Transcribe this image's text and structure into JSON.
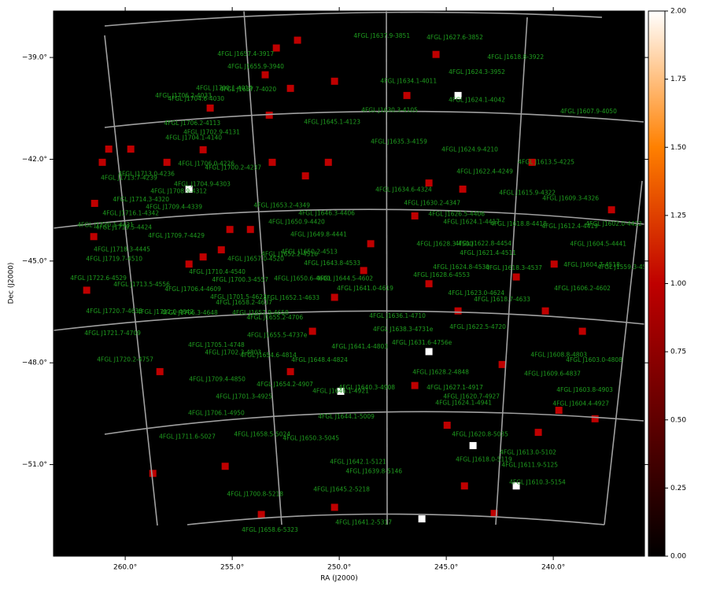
{
  "chart_data": {
    "type": "image",
    "xlabel": "RA (J2000)",
    "ylabel": "Dec (J2000)",
    "xlim": [
      263.35,
      235.74
    ],
    "ylim": [
      -53.7,
      -37.63
    ],
    "xticks": [
      {
        "value": 260,
        "label": "260.0°"
      },
      {
        "value": 255,
        "label": "255.0°"
      },
      {
        "value": 250,
        "label": "250.0°"
      },
      {
        "value": 245,
        "label": "245.0°"
      },
      {
        "value": 240,
        "label": "240.0°"
      }
    ],
    "yticks": [
      {
        "value": -39,
        "label": "−39.0°"
      },
      {
        "value": -42,
        "label": "−42.0°"
      },
      {
        "value": -45,
        "label": "−45.0°"
      },
      {
        "value": -48,
        "label": "−48.0°"
      },
      {
        "value": -51,
        "label": "−51.0°"
      }
    ],
    "background": "#000000",
    "label_color": "#1f9e1f",
    "colorbar": {
      "lim": [
        0,
        2
      ],
      "ticks": [
        {
          "value": 0,
          "label": "0.00"
        },
        {
          "value": 0.25,
          "label": "0.25"
        },
        {
          "value": 0.5,
          "label": "0.50"
        },
        {
          "value": 0.75,
          "label": "0.75"
        },
        {
          "value": 1,
          "label": "1.00"
        },
        {
          "value": 1.25,
          "label": "1.25"
        },
        {
          "value": 1.5,
          "label": "1.50"
        },
        {
          "value": 1.75,
          "label": "1.75"
        },
        {
          "value": 2,
          "label": "2.00"
        }
      ],
      "colormap": [
        "#000000",
        "#600000",
        "#bf0000",
        "#ff8000",
        "#ffffff"
      ]
    },
    "sources": [
      {
        "name": "4FGL J1637.9-3851",
        "ra": 248.01,
        "dec": -38.37
      },
      {
        "name": "4FGL J1627.6-3852",
        "ra": 244.6,
        "dec": -38.42
      },
      {
        "name": "4FGL J1657.4-3917",
        "ra": 254.37,
        "dec": -38.91
      },
      {
        "name": "4FGL J1618.8-3922",
        "ra": 241.76,
        "dec": -39.0
      },
      {
        "name": "4FGL J1655.9-3940",
        "ra": 253.9,
        "dec": -39.28
      },
      {
        "name": "4FGL J1624.3-3952",
        "ra": 243.57,
        "dec": -39.44
      },
      {
        "name": "4FGL J1634.1-4011",
        "ra": 246.76,
        "dec": -39.7
      },
      {
        "name": "4FGL J1700.1-4014",
        "ra": 255.37,
        "dec": -39.91
      },
      {
        "name": "4FGL J1657.7-4020",
        "ra": 254.26,
        "dec": -39.95
      },
      {
        "name": "4FGL J1706.2-4033",
        "ra": 257.28,
        "dec": -40.14
      },
      {
        "name": "4FGL J1704.6-4030",
        "ra": 256.69,
        "dec": -40.23
      },
      {
        "name": "4FGL J1624.1-4042",
        "ra": 243.57,
        "dec": -40.26
      },
      {
        "name": "4FGL J1630.3-4105",
        "ra": 247.65,
        "dec": -40.56
      },
      {
        "name": "4FGL J1607.9-4050",
        "ra": 238.35,
        "dec": -40.6
      },
      {
        "name": "4FGL J1645.1-4123",
        "ra": 250.33,
        "dec": -40.91
      },
      {
        "name": "4FGL J1706.2-4113",
        "ra": 256.87,
        "dec": -40.95
      },
      {
        "name": "4FGL J1702.9-4131",
        "ra": 255.96,
        "dec": -41.21
      },
      {
        "name": "4FGL J1704.1-4140",
        "ra": 256.8,
        "dec": -41.37
      },
      {
        "name": "4FGL J1635.3-4159",
        "ra": 247.21,
        "dec": -41.49
      },
      {
        "name": "4FGL J1624.9-4210",
        "ra": 243.9,
        "dec": -41.72
      },
      {
        "name": "4FGL J1613.5-4225",
        "ra": 240.33,
        "dec": -42.09
      },
      {
        "name": "4FGL J1706.0-4226",
        "ra": 256.21,
        "dec": -42.14
      },
      {
        "name": "4FGL J1700.2-4237",
        "ra": 254.96,
        "dec": -42.26
      },
      {
        "name": "4FGL J1622.4-4249",
        "ra": 243.2,
        "dec": -42.37
      },
      {
        "name": "4FGL J1713.0-4236",
        "ra": 259.01,
        "dec": -42.44
      },
      {
        "name": "4FGL J1713.7-4239",
        "ra": 259.82,
        "dec": -42.56
      },
      {
        "name": "4FGL J1704.9-4303",
        "ra": 256.4,
        "dec": -42.74
      },
      {
        "name": "4FGL J1708.9-4312",
        "ra": 257.5,
        "dec": -42.95
      },
      {
        "name": "4FGL J1634.6-4324",
        "ra": 246.99,
        "dec": -42.91
      },
      {
        "name": "4FGL J1615.9-4322",
        "ra": 241.21,
        "dec": -43.0
      },
      {
        "name": "4FGL J1609.3-4326",
        "ra": 239.19,
        "dec": -43.16
      },
      {
        "name": "4FGL J1714.3-4320",
        "ra": 259.26,
        "dec": -43.19
      },
      {
        "name": "4FGL J1630.2-4347",
        "ra": 245.66,
        "dec": -43.3
      },
      {
        "name": "4FGL J1653.2-4349",
        "ra": 252.68,
        "dec": -43.37
      },
      {
        "name": "4FGL J1709.4-4339",
        "ra": 257.72,
        "dec": -43.42
      },
      {
        "name": "4FGL J1716.1-4342",
        "ra": 259.74,
        "dec": -43.6
      },
      {
        "name": "4FGL J1646.3-4406",
        "ra": 250.59,
        "dec": -43.6
      },
      {
        "name": "4FGL J1626.5-4406",
        "ra": 244.52,
        "dec": -43.63
      },
      {
        "name": "4FGL J1624.1-4417",
        "ra": 243.82,
        "dec": -43.86
      },
      {
        "name": "4FGL J1650.9-4420",
        "ra": 251.99,
        "dec": -43.86
      },
      {
        "name": "4FGL J1618.8-4418",
        "ra": 241.62,
        "dec": -43.91
      },
      {
        "name": "4FGL J1612.4-4419",
        "ra": 239.23,
        "dec": -43.98
      },
      {
        "name": "4FGL J1602.0-4422",
        "ra": 237.17,
        "dec": -43.91
      },
      {
        "name": "4FGL J1720.1-4431",
        "ra": 260.92,
        "dec": -43.95
      },
      {
        "name": "4FGL J1719.5-4424",
        "ra": 260.07,
        "dec": -44.02
      },
      {
        "name": "4FGL J1709.7-4429",
        "ra": 257.61,
        "dec": -44.26
      },
      {
        "name": "4FGL J1649.8-4441",
        "ra": 250.96,
        "dec": -44.23
      },
      {
        "name": "4FGL J1622.8-4454",
        "ra": 243.27,
        "dec": -44.49
      },
      {
        "name": "4FGL J1628.3-4500",
        "ra": 245.07,
        "dec": -44.51
      },
      {
        "name": "4FGL J1604.5-4441",
        "ra": 237.9,
        "dec": -44.51
      },
      {
        "name": "4FGL J1718.3-4445",
        "ra": 260.15,
        "dec": -44.67
      },
      {
        "name": "4FGL J1650.2-4513",
        "ra": 251.4,
        "dec": -44.74
      },
      {
        "name": "4FGL J1652.2-4516",
        "ra": 252.32,
        "dec": -44.81
      },
      {
        "name": "4FGL J1621.4-4511",
        "ra": 243.05,
        "dec": -44.77
      },
      {
        "name": "4FGL J1657.0-4520",
        "ra": 253.9,
        "dec": -44.95
      },
      {
        "name": "4FGL J1719.7-4510",
        "ra": 260.51,
        "dec": -44.95
      },
      {
        "name": "4FGL J1643.8-4533",
        "ra": 250.33,
        "dec": -45.07
      },
      {
        "name": "4FGL J1618.3-4537",
        "ra": 241.84,
        "dec": -45.21
      },
      {
        "name": "4FGL J1624.8-4530",
        "ra": 244.3,
        "dec": -45.19
      },
      {
        "name": "4FGL J1604.7-4518",
        "ra": 238.2,
        "dec": -45.12
      },
      {
        "name": "4FGL J1559.3-4523",
        "ra": 236.62,
        "dec": -45.19
      },
      {
        "name": "4FGL J1710.4-4540",
        "ra": 255.7,
        "dec": -45.33
      },
      {
        "name": "4FGL J1628.6-4553",
        "ra": 245.22,
        "dec": -45.42
      },
      {
        "name": "4FGL J1722.6-4529",
        "ra": 261.25,
        "dec": -45.51
      },
      {
        "name": "4FGL J1700.3-4557",
        "ra": 254.63,
        "dec": -45.56
      },
      {
        "name": "4FGL J1650.6-4600",
        "ra": 251.73,
        "dec": -45.53
      },
      {
        "name": "4FGL J1644.5-4602",
        "ra": 249.74,
        "dec": -45.53
      },
      {
        "name": "4FGL J1713.5-4556",
        "ra": 259.23,
        "dec": -45.7
      },
      {
        "name": "4FGL J1606.2-4602",
        "ra": 238.64,
        "dec": -45.81
      },
      {
        "name": "4FGL J1641.0-4619",
        "ra": 248.79,
        "dec": -45.81
      },
      {
        "name": "4FGL J1706.4-4609",
        "ra": 256.84,
        "dec": -45.84
      },
      {
        "name": "4FGL J1623.0-4624",
        "ra": 243.6,
        "dec": -45.95
      },
      {
        "name": "4FGL J1701.5-4623",
        "ra": 254.71,
        "dec": -46.07
      },
      {
        "name": "4FGL J1652.1-4633",
        "ra": 252.24,
        "dec": -46.09
      },
      {
        "name": "4FGL J1618.7-4633",
        "ra": 242.39,
        "dec": -46.14
      },
      {
        "name": "4FGL J1658.2-4637",
        "ra": 254.45,
        "dec": -46.23
      },
      {
        "name": "4FGL J1720.7-4633",
        "ra": 260.51,
        "dec": -46.49
      },
      {
        "name": "4FGL J1712.0-4642",
        "ra": 258.12,
        "dec": -46.51
      },
      {
        "name": "4FGL J1706.3-4648",
        "ra": 256.99,
        "dec": -46.53
      },
      {
        "name": "4FGL J1657.9-4658",
        "ra": 253.68,
        "dec": -46.53
      },
      {
        "name": "4FGL J1655.2-4706",
        "ra": 253.01,
        "dec": -46.67
      },
      {
        "name": "4FGL J1636.1-4710",
        "ra": 247.28,
        "dec": -46.63
      },
      {
        "name": "4FGL J1622.5-4720",
        "ra": 243.53,
        "dec": -46.95
      },
      {
        "name": "4FGL J1655.5-4737e",
        "ra": 252.9,
        "dec": -47.19
      },
      {
        "name": "4FGL J1638.3-4731e",
        "ra": 247.02,
        "dec": -47.02
      },
      {
        "name": "4FGL J1721.7-4709",
        "ra": 260.59,
        "dec": -47.14
      },
      {
        "name": "4FGL J1631.6-4756e",
        "ra": 246.14,
        "dec": -47.42
      },
      {
        "name": "4FGL J1705.1-4748",
        "ra": 255.74,
        "dec": -47.49
      },
      {
        "name": "4FGL J1641.4-4803",
        "ra": 249.04,
        "dec": -47.53
      },
      {
        "name": "4FGL J1702.3-4803",
        "ra": 254.96,
        "dec": -47.7
      },
      {
        "name": "4FGL J1608.8-4803",
        "ra": 239.74,
        "dec": -47.77
      },
      {
        "name": "4FGL J1654.6-4814",
        "ra": 253.31,
        "dec": -47.79
      },
      {
        "name": "4FGL J1720.2-4757",
        "ra": 260.0,
        "dec": -47.91
      },
      {
        "name": "4FGL J1648.4-4824",
        "ra": 250.92,
        "dec": -47.93
      },
      {
        "name": "4FGL J1603.0-4808",
        "ra": 238.09,
        "dec": -47.93
      },
      {
        "name": "4FGL J1628.2-4848",
        "ra": 245.26,
        "dec": -48.28
      },
      {
        "name": "4FGL J1609.6-4837",
        "ra": 240.04,
        "dec": -48.33
      },
      {
        "name": "4FGL J1709.4-4850",
        "ra": 255.7,
        "dec": -48.49
      },
      {
        "name": "4FGL J1654.2-4907",
        "ra": 252.54,
        "dec": -48.65
      },
      {
        "name": "4FGL J1640.3-4908",
        "ra": 248.71,
        "dec": -48.74
      },
      {
        "name": "4FGL J1627.1-4917",
        "ra": 244.6,
        "dec": -48.74
      },
      {
        "name": "4FGL J1603.8-4903",
        "ra": 238.53,
        "dec": -48.81
      },
      {
        "name": "4FGL J1646.1-4921",
        "ra": 249.93,
        "dec": -48.84
      },
      {
        "name": "4FGL J1701.3-4925",
        "ra": 254.45,
        "dec": -49.0
      },
      {
        "name": "4FGL J1620.7-4927",
        "ra": 243.82,
        "dec": -49.0
      },
      {
        "name": "4FGL J1624.1-4941",
        "ra": 244.19,
        "dec": -49.19
      },
      {
        "name": "4FGL J1604.4-4927",
        "ra": 238.71,
        "dec": -49.21
      },
      {
        "name": "4FGL J1706.1-4950",
        "ra": 255.74,
        "dec": -49.49
      },
      {
        "name": "4FGL J1644.1-5009",
        "ra": 249.67,
        "dec": -49.6
      },
      {
        "name": "4FGL J1711.6-5027",
        "ra": 257.1,
        "dec": -50.19
      },
      {
        "name": "4FGL J1658.5-5024",
        "ra": 253.6,
        "dec": -50.12
      },
      {
        "name": "4FGL J1650.3-5045",
        "ra": 251.32,
        "dec": -50.23
      },
      {
        "name": "4FGL J1620.8-5035",
        "ra": 243.42,
        "dec": -50.12
      },
      {
        "name": "4FGL J1613.0-5102",
        "ra": 241.18,
        "dec": -50.65
      },
      {
        "name": "4FGL J1618.0-5119",
        "ra": 243.24,
        "dec": -50.86
      },
      {
        "name": "4FGL J1611.9-5125",
        "ra": 241.1,
        "dec": -51.02
      },
      {
        "name": "4FGL J1642.1-5121",
        "ra": 249.12,
        "dec": -50.93
      },
      {
        "name": "4FGL J1639.8-5146",
        "ra": 248.38,
        "dec": -51.21
      },
      {
        "name": "4FGL J1610.3-5154",
        "ra": 240.74,
        "dec": -51.53
      },
      {
        "name": "4FGL J1645.2-5218",
        "ra": 249.89,
        "dec": -51.74
      },
      {
        "name": "4FGL J1700.8-5218",
        "ra": 253.93,
        "dec": -51.88
      },
      {
        "name": "4FGL J1641.2-5317",
        "ra": 248.86,
        "dec": -52.72
      },
      {
        "name": "4FGL J1658.6-5323",
        "ra": 253.24,
        "dec": -52.93
      }
    ],
    "pixels": [
      {
        "ra": 251.95,
        "dec": -38.49,
        "value": 1
      },
      {
        "ra": 252.94,
        "dec": -38.72,
        "value": 1
      },
      {
        "ra": 245.48,
        "dec": -38.91,
        "value": 1
      },
      {
        "ra": 253.46,
        "dec": -39.51,
        "value": 1
      },
      {
        "ra": 250.22,
        "dec": -39.7,
        "value": 1
      },
      {
        "ra": 252.28,
        "dec": -39.91,
        "value": 1
      },
      {
        "ra": 246.84,
        "dec": -40.12,
        "value": 1
      },
      {
        "ra": 256.03,
        "dec": -40.49,
        "value": 1
      },
      {
        "ra": 253.27,
        "dec": -40.7,
        "value": 1
      },
      {
        "ra": 260.77,
        "dec": -41.7,
        "value": 1
      },
      {
        "ra": 259.74,
        "dec": -41.7,
        "value": 1
      },
      {
        "ra": 256.36,
        "dec": -41.72,
        "value": 1
      },
      {
        "ra": 261.07,
        "dec": -42.09,
        "value": 1
      },
      {
        "ra": 258.05,
        "dec": -42.09,
        "value": 1
      },
      {
        "ra": 253.13,
        "dec": -42.09,
        "value": 1
      },
      {
        "ra": 250.51,
        "dec": -42.09,
        "value": 1
      },
      {
        "ra": 240.99,
        "dec": -42.09,
        "value": 1
      },
      {
        "ra": 251.58,
        "dec": -42.49,
        "value": 1
      },
      {
        "ra": 245.81,
        "dec": -42.7,
        "value": 1
      },
      {
        "ra": 244.23,
        "dec": -42.88,
        "value": 1
      },
      {
        "ra": 261.43,
        "dec": -43.3,
        "value": 1
      },
      {
        "ra": 237.28,
        "dec": -43.49,
        "value": 1
      },
      {
        "ra": 246.47,
        "dec": -43.67,
        "value": 1
      },
      {
        "ra": 255.11,
        "dec": -44.07,
        "value": 1
      },
      {
        "ra": 254.15,
        "dec": -44.07,
        "value": 1
      },
      {
        "ra": 261.47,
        "dec": -44.28,
        "value": 1
      },
      {
        "ra": 248.53,
        "dec": -44.49,
        "value": 1
      },
      {
        "ra": 255.51,
        "dec": -44.67,
        "value": 1
      },
      {
        "ra": 256.36,
        "dec": -44.88,
        "value": 1
      },
      {
        "ra": 257.02,
        "dec": -45.09,
        "value": 1
      },
      {
        "ra": 248.86,
        "dec": -45.28,
        "value": 1
      },
      {
        "ra": 241.73,
        "dec": -45.47,
        "value": 1
      },
      {
        "ra": 239.96,
        "dec": -45.09,
        "value": 1
      },
      {
        "ra": 261.8,
        "dec": -45.86,
        "value": 1
      },
      {
        "ra": 245.81,
        "dec": -45.67,
        "value": 1
      },
      {
        "ra": 250.22,
        "dec": -46.07,
        "value": 1
      },
      {
        "ra": 244.45,
        "dec": -46.47,
        "value": 1
      },
      {
        "ra": 240.37,
        "dec": -46.47,
        "value": 1
      },
      {
        "ra": 251.25,
        "dec": -47.07,
        "value": 1
      },
      {
        "ra": 238.64,
        "dec": -47.07,
        "value": 1
      },
      {
        "ra": 258.38,
        "dec": -48.26,
        "value": 1
      },
      {
        "ra": 252.28,
        "dec": -48.26,
        "value": 1
      },
      {
        "ra": 242.39,
        "dec": -48.05,
        "value": 1
      },
      {
        "ra": 246.47,
        "dec": -48.67,
        "value": 1
      },
      {
        "ra": 239.74,
        "dec": -49.4,
        "value": 1
      },
      {
        "ra": 238.05,
        "dec": -49.65,
        "value": 1
      },
      {
        "ra": 244.96,
        "dec": -49.84,
        "value": 1
      },
      {
        "ra": 240.7,
        "dec": -50.05,
        "value": 1
      },
      {
        "ra": 255.33,
        "dec": -51.05,
        "value": 1
      },
      {
        "ra": 258.71,
        "dec": -51.26,
        "value": 1
      },
      {
        "ra": 244.15,
        "dec": -51.63,
        "value": 1
      },
      {
        "ra": 250.22,
        "dec": -52.26,
        "value": 1
      },
      {
        "ra": 253.64,
        "dec": -52.47,
        "value": 1
      },
      {
        "ra": 242.76,
        "dec": -52.44,
        "value": 1
      },
      {
        "ra": 244.45,
        "dec": -40.12,
        "value": 2
      },
      {
        "ra": 257.02,
        "dec": -42.88,
        "value": 2
      },
      {
        "ra": 245.81,
        "dec": -47.67,
        "value": 2
      },
      {
        "ra": 249.93,
        "dec": -48.84,
        "value": 2
      },
      {
        "ra": 243.75,
        "dec": -50.44,
        "value": 2
      },
      {
        "ra": 241.73,
        "dec": -51.63,
        "value": 2
      },
      {
        "ra": 246.14,
        "dec": -52.6,
        "value": 2
      }
    ]
  }
}
